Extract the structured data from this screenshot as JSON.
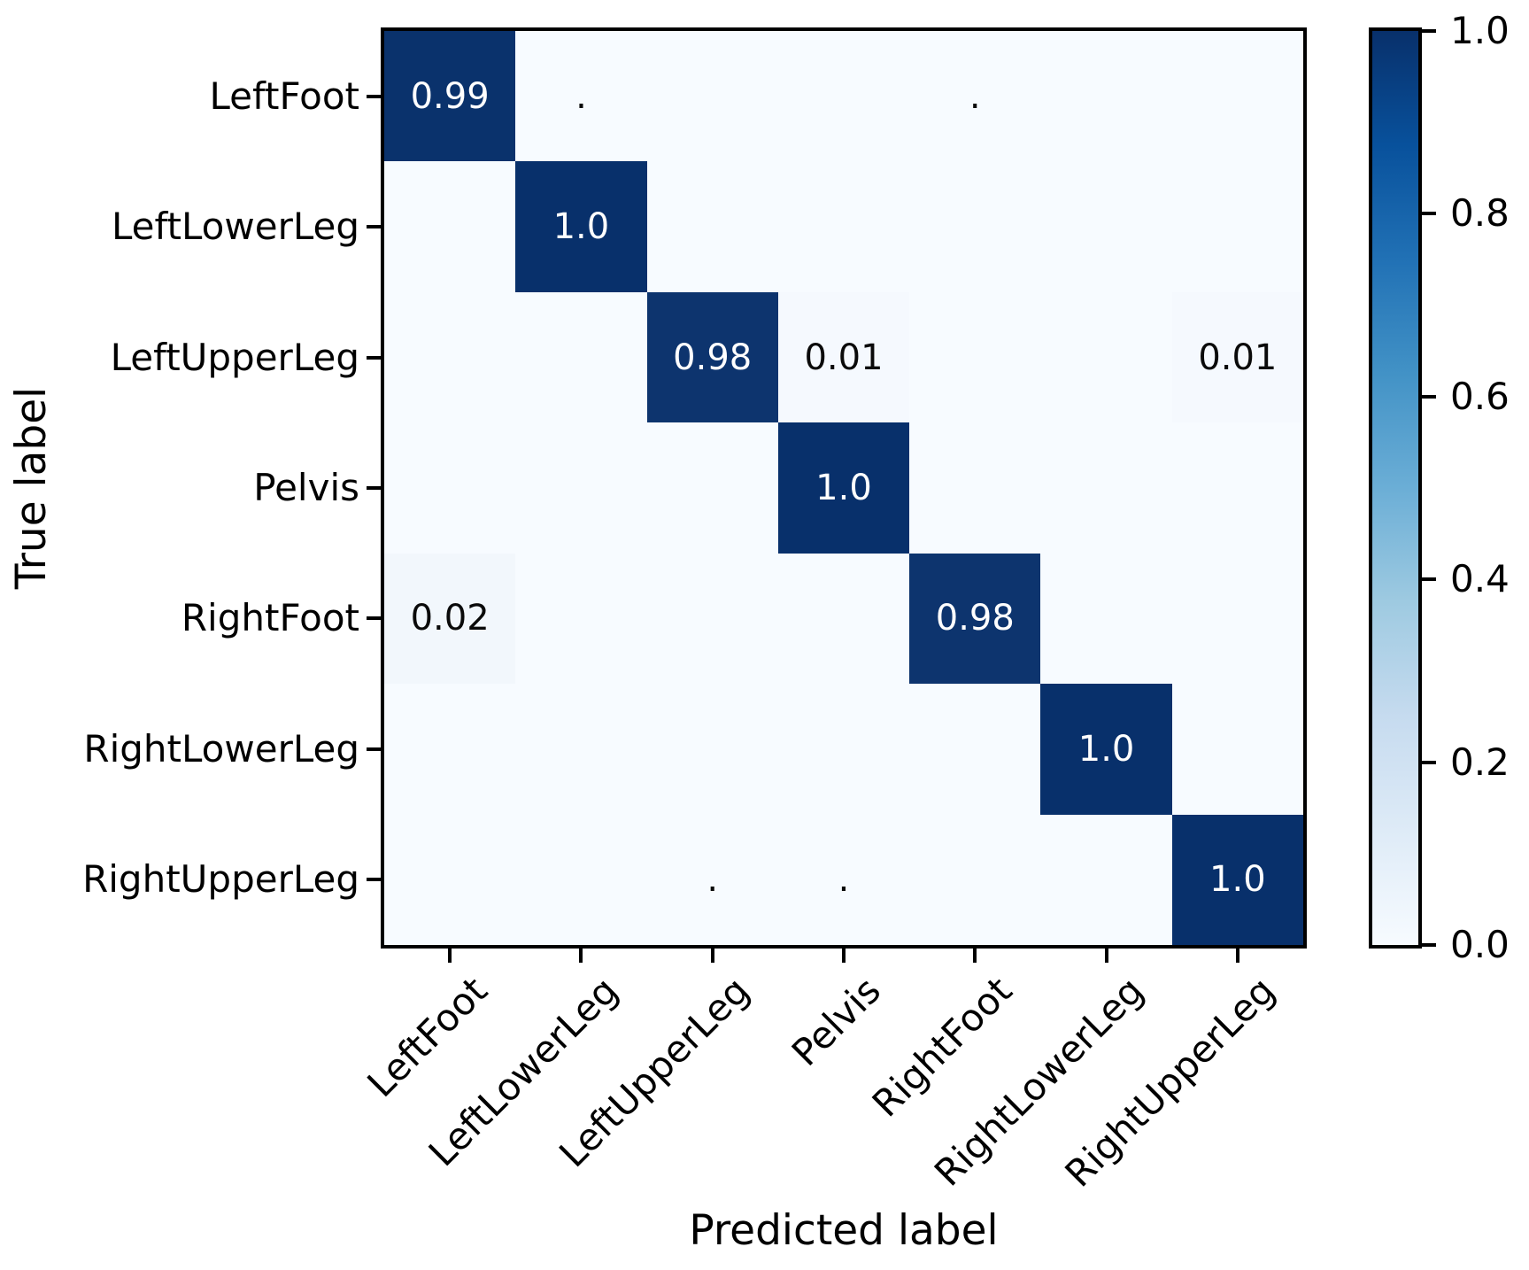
{
  "chart_data": {
    "type": "heatmap",
    "title": "",
    "xlabel": "Predicted label",
    "ylabel": "True label",
    "x_tick_labels": [
      "LeftFoot",
      "LeftLowerLeg",
      "LeftUpperLeg",
      "Pelvis",
      "RightFoot",
      "RightLowerLeg",
      "RightUpperLeg"
    ],
    "y_tick_labels": [
      "LeftFoot",
      "LeftLowerLeg",
      "LeftUpperLeg",
      "Pelvis",
      "RightFoot",
      "RightLowerLeg",
      "RightUpperLeg"
    ],
    "cell_text": [
      [
        "0.99",
        ".",
        "",
        "",
        ".",
        "",
        ""
      ],
      [
        "",
        "1.0",
        "",
        "",
        "",
        "",
        ""
      ],
      [
        "",
        "",
        "0.98",
        "0.01",
        "",
        "",
        "0.01"
      ],
      [
        "",
        "",
        "",
        "1.0",
        "",
        "",
        ""
      ],
      [
        "0.02",
        "",
        "",
        "",
        "0.98",
        "",
        ""
      ],
      [
        "",
        "",
        "",
        "",
        "",
        "1.0",
        ""
      ],
      [
        "",
        "",
        ".",
        ".",
        "",
        "",
        "1.0"
      ]
    ],
    "values": [
      [
        0.99,
        0.002,
        0,
        0,
        0.002,
        0,
        0
      ],
      [
        0,
        1.0,
        0,
        0,
        0,
        0,
        0
      ],
      [
        0,
        0,
        0.98,
        0.01,
        0,
        0,
        0.01
      ],
      [
        0,
        0,
        0,
        1.0,
        0,
        0,
        0
      ],
      [
        0.02,
        0,
        0,
        0,
        0.98,
        0,
        0
      ],
      [
        0,
        0,
        0,
        0,
        0,
        1.0,
        0
      ],
      [
        0,
        0,
        0.002,
        0.002,
        0,
        0,
        1.0
      ]
    ],
    "legend_position": "right-colorbar",
    "grid": false,
    "colorbar": {
      "tick_labels": [
        "1.0",
        "0.8",
        "0.6",
        "0.4",
        "0.2",
        "0.0"
      ],
      "vmin": 0.0,
      "vmax": 1.0,
      "colormap": "Blues"
    },
    "colors": {
      "cmap_high": "#08306b",
      "cmap_low": "#f7fbff",
      "text_on_dark": "#ffffff",
      "text_on_light": "#0a0a0a",
      "axis": "#000000"
    }
  }
}
